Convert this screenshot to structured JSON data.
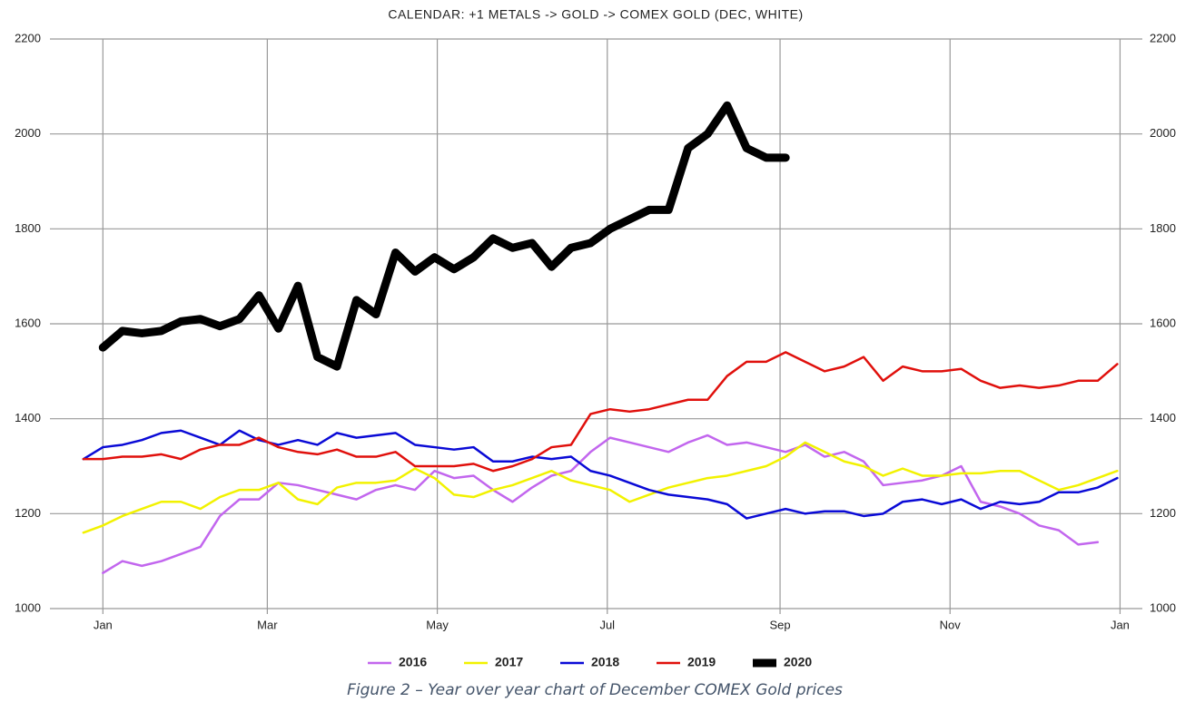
{
  "chart_data": {
    "type": "line",
    "title": "CALENDAR: +1 METALS -> GOLD -> COMEX GOLD (DEC, WHITE)",
    "x": [
      -7,
      0,
      7,
      14,
      21,
      28,
      35,
      42,
      49,
      56,
      63,
      70,
      77,
      84,
      91,
      98,
      105,
      112,
      119,
      126,
      133,
      140,
      147,
      154,
      161,
      168,
      175,
      182,
      189,
      196,
      203,
      210,
      217,
      224,
      231,
      238,
      245,
      252,
      259,
      266,
      273,
      280,
      287,
      294,
      301,
      308,
      315,
      322,
      329,
      336,
      343,
      350,
      357,
      364
    ],
    "xlim": [
      -19,
      373
    ],
    "xticks": [
      {
        "value": 0,
        "label": "Jan"
      },
      {
        "value": 59,
        "label": "Mar"
      },
      {
        "value": 120,
        "label": "May"
      },
      {
        "value": 181,
        "label": "Jul"
      },
      {
        "value": 243,
        "label": "Sep"
      },
      {
        "value": 304,
        "label": "Nov"
      },
      {
        "value": 365,
        "label": "Jan"
      }
    ],
    "ylim": [
      1000,
      2200
    ],
    "yticks": [
      1000,
      1200,
      1400,
      1600,
      1800,
      2000,
      2200
    ],
    "y2lim": [
      1000,
      2200
    ],
    "y2ticks": [
      1000,
      1200,
      1400,
      1600,
      1800,
      2000,
      2200
    ],
    "grid": true,
    "legend": "bottom",
    "series": [
      {
        "name": "2016",
        "color": "#c266ee",
        "width": 2.5,
        "values": [
          null,
          1075,
          1100,
          1090,
          1100,
          1115,
          1130,
          1195,
          1230,
          1230,
          1265,
          1260,
          1250,
          1240,
          1230,
          1250,
          1260,
          1250,
          1290,
          1275,
          1280,
          1250,
          1225,
          1255,
          1280,
          1290,
          1330,
          1360,
          1350,
          1340,
          1330,
          1350,
          1365,
          1345,
          1350,
          1340,
          1330,
          1345,
          1320,
          1330,
          1310,
          1260,
          1265,
          1270,
          1280,
          1300,
          1225,
          1215,
          1200,
          1175,
          1165,
          1135,
          1140,
          null
        ]
      },
      {
        "name": "2017",
        "color": "#f2f200",
        "width": 2.5,
        "values": [
          1160,
          1175,
          1195,
          1210,
          1225,
          1225,
          1210,
          1235,
          1250,
          1250,
          1265,
          1230,
          1220,
          1255,
          1265,
          1265,
          1270,
          1295,
          1275,
          1240,
          1235,
          1250,
          1260,
          1275,
          1290,
          1270,
          1260,
          1250,
          1225,
          1240,
          1255,
          1265,
          1275,
          1280,
          1290,
          1300,
          1320,
          1350,
          1330,
          1310,
          1300,
          1280,
          1295,
          1280,
          1280,
          1285,
          1285,
          1290,
          1290,
          1270,
          1250,
          1260,
          1275,
          1290
        ]
      },
      {
        "name": "2018",
        "color": "#0a0ad6",
        "width": 2.5,
        "values": [
          1315,
          1340,
          1345,
          1355,
          1370,
          1375,
          1360,
          1345,
          1375,
          1355,
          1345,
          1355,
          1345,
          1370,
          1360,
          1365,
          1370,
          1345,
          1340,
          1335,
          1340,
          1310,
          1310,
          1320,
          1315,
          1320,
          1290,
          1280,
          1265,
          1250,
          1240,
          1235,
          1230,
          1220,
          1190,
          1200,
          1210,
          1200,
          1205,
          1205,
          1195,
          1200,
          1225,
          1230,
          1220,
          1230,
          1210,
          1225,
          1220,
          1225,
          1245,
          1245,
          1255,
          1275
        ]
      },
      {
        "name": "2019",
        "color": "#e0100c",
        "width": 2.5,
        "values": [
          1315,
          1315,
          1320,
          1320,
          1325,
          1315,
          1335,
          1345,
          1345,
          1360,
          1340,
          1330,
          1325,
          1335,
          1320,
          1320,
          1330,
          1300,
          1300,
          1300,
          1305,
          1290,
          1300,
          1315,
          1340,
          1345,
          1410,
          1420,
          1415,
          1420,
          1430,
          1440,
          1440,
          1490,
          1520,
          1520,
          1540,
          1520,
          1500,
          1510,
          1530,
          1480,
          1510,
          1500,
          1500,
          1505,
          1480,
          1465,
          1470,
          1465,
          1470,
          1480,
          1480,
          1515
        ]
      },
      {
        "name": "2020",
        "color": "#000000",
        "width": 9,
        "values": [
          null,
          1550,
          1585,
          1580,
          1585,
          1605,
          1610,
          1595,
          1610,
          1660,
          1590,
          1680,
          1530,
          1510,
          1650,
          1620,
          1750,
          1710,
          1740,
          1715,
          1740,
          1780,
          1760,
          1770,
          1720,
          1760,
          1770,
          1800,
          1820,
          1840,
          1840,
          1970,
          2000,
          2060,
          1970,
          1950,
          1950,
          null,
          null,
          null,
          null,
          null,
          null,
          null,
          null,
          null,
          null,
          null,
          null,
          null,
          null,
          null,
          null,
          null
        ]
      }
    ]
  },
  "caption": "Figure 2 – Year over year chart of December COMEX Gold prices"
}
